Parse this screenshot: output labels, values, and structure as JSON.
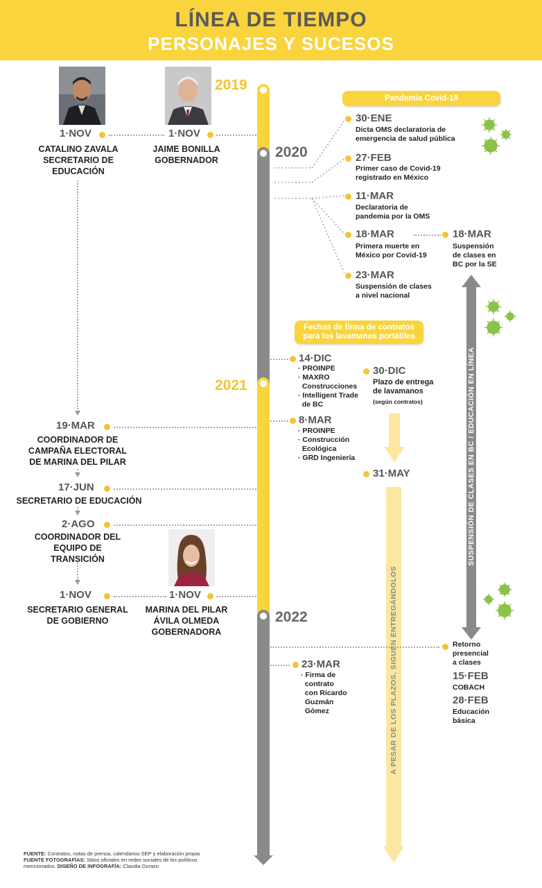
{
  "header": {
    "title": "LÍNEA DE TIEMPO",
    "subtitle": "PERSONAJES Y SUCESOS"
  },
  "years": {
    "y2019": "2019",
    "y2020": "2020",
    "y2021": "2021",
    "y2022": "2022"
  },
  "left": {
    "zavala_date": "1·NOV",
    "zavala_label": "CATALINO ZAVALA\nSECRETARIO DE\nEDUCACIÓN",
    "bonilla_date": "1·NOV",
    "bonilla_label": "JAIME BONILLA\nGOBERNADOR",
    "mar19_date": "19·MAR",
    "mar19_label": "COORDINADOR DE\nCAMPAÑA ELECTORAL\nDE MARINA DEL PILAR",
    "jun17_date": "17·JUN",
    "jun17_label": "SECRETARIO DE EDUCACIÓN",
    "ago2_date": "2·AGO",
    "ago2_label": "COORDINADOR DEL\nEQUIPO DE TRANSICIÓN",
    "nov1b_date": "1·NOV",
    "nov1b_label": "SECRETARIO GENERAL\nDE GOBIERNO",
    "marina_date": "1·NOV",
    "marina_label": "MARINA DEL PILAR\nÁVILA OLMEDA\nGOBERNADORA"
  },
  "covid": {
    "pill": "Pandemia Covid-19",
    "e1_date": "30·ENE",
    "e1_text": "Dicta OMS declaratoria de\nemergencia de salud pública",
    "e2_date": "27·FEB",
    "e2_text": "Primer caso de Covid-19\nregistrado en México",
    "e3_date": "11·MAR",
    "e3_text": "Declaratoria de\npandemia por la OMS",
    "e4_date": "18·MAR",
    "e4_text": "Primera muerte en\nMéxico por Covid-19",
    "e5_date": "18·MAR",
    "e5_text": "Suspensión\nde clases en\nBC por la SE",
    "e6_date": "23·MAR",
    "e6_text": "Suspensión de clases\na nivel nacional"
  },
  "contracts": {
    "pill": "Fechas de firma de contratos\npara los lavamanos portátiles",
    "dic14_date": "14·DIC",
    "dic14_items": "· PROINPE\n· MAXRO\n  Construcciones\n· Intelligent Trade\n  de BC",
    "dic30_date": "30·DIC",
    "dic30_text": "Plazo de entrega\nde lavamanos",
    "dic30_note": "(según contratos)",
    "mar8_date": "8·MAR",
    "mar8_items": "· PROINPE\n· Construcción\n  Ecológica\n· GRD Ingeniería",
    "may31_date": "31·MAY",
    "mar23_date": "23·MAR",
    "mar23_text": "· Firma de\n  contrato\n  con Ricardo\n  Guzmán\n  Gómez"
  },
  "return": {
    "text": "Retorno\npresencial\na clases",
    "feb15_date": "15·FEB",
    "feb15_text": "COBACH",
    "feb28_date": "28·FEB",
    "feb28_text": "Educación\nbásica"
  },
  "vertical": {
    "suspension": "SUSPENSIÓN DE CLASES EN BC  /  EDUCACIÓN EN LÍNEA",
    "pesar": "A PESAR DE LOS PLAZOS, SIGUEN ENTREGÁNDOLOS"
  },
  "footer": {
    "fuente_label": "FUENTE:",
    "fuente_text": " Contratos, notas de prensa, calendarios SEP y elaboración propia",
    "foto_label": "FUENTE FOTOGRAFÍAS:",
    "foto_text": " Sitios oficiales en redes sociales de los políticos mencionados.",
    "diseno_label": "DISEÑO DE INFOGRAFÍA:",
    "diseno_text": " Claudia Durazo"
  },
  "colors": {
    "yellow": "#f9d43d",
    "gray": "#8a8a8a",
    "dot": "#f5c431",
    "virus": "#8bc34a"
  }
}
